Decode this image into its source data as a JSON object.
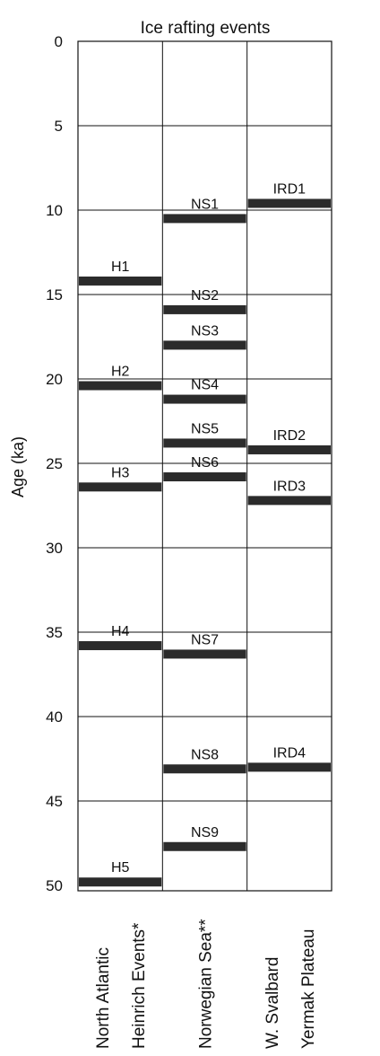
{
  "chart_data": {
    "type": "bar",
    "title": "Ice rafting events",
    "ylabel": "Age (ka)",
    "ylim": [
      0,
      50
    ],
    "yticks": [
      0,
      5,
      10,
      15,
      20,
      25,
      30,
      35,
      40,
      45,
      50
    ],
    "grid": true,
    "bar_color": "#2b2b2b",
    "columns": [
      {
        "label_lines": [
          "North Atlantic",
          "Heinrich Events*"
        ],
        "events": [
          {
            "label": "H1",
            "age": 14.2
          },
          {
            "label": "H2",
            "age": 20.4
          },
          {
            "label": "H3",
            "age": 26.4
          },
          {
            "label": "H4",
            "age": 35.8
          },
          {
            "label": "H5",
            "age": 49.8
          }
        ]
      },
      {
        "label_lines": [
          "Norwegian Sea**"
        ],
        "events": [
          {
            "label": "NS1",
            "age": 10.5
          },
          {
            "label": "NS2",
            "age": 15.9
          },
          {
            "label": "NS3",
            "age": 18.0
          },
          {
            "label": "NS4",
            "age": 21.2
          },
          {
            "label": "NS5",
            "age": 23.8
          },
          {
            "label": "NS6",
            "age": 25.8
          },
          {
            "label": "NS7",
            "age": 36.3
          },
          {
            "label": "NS8",
            "age": 43.1
          },
          {
            "label": "NS9",
            "age": 47.7
          }
        ]
      },
      {
        "label_lines": [
          "W. Svalbard",
          "Yermak Plateau"
        ],
        "events": [
          {
            "label": "IRD1",
            "age": 9.6
          },
          {
            "label": "IRD2",
            "age": 24.2
          },
          {
            "label": "IRD3",
            "age": 27.2
          },
          {
            "label": "IRD4",
            "age": 43.0
          }
        ]
      }
    ]
  }
}
